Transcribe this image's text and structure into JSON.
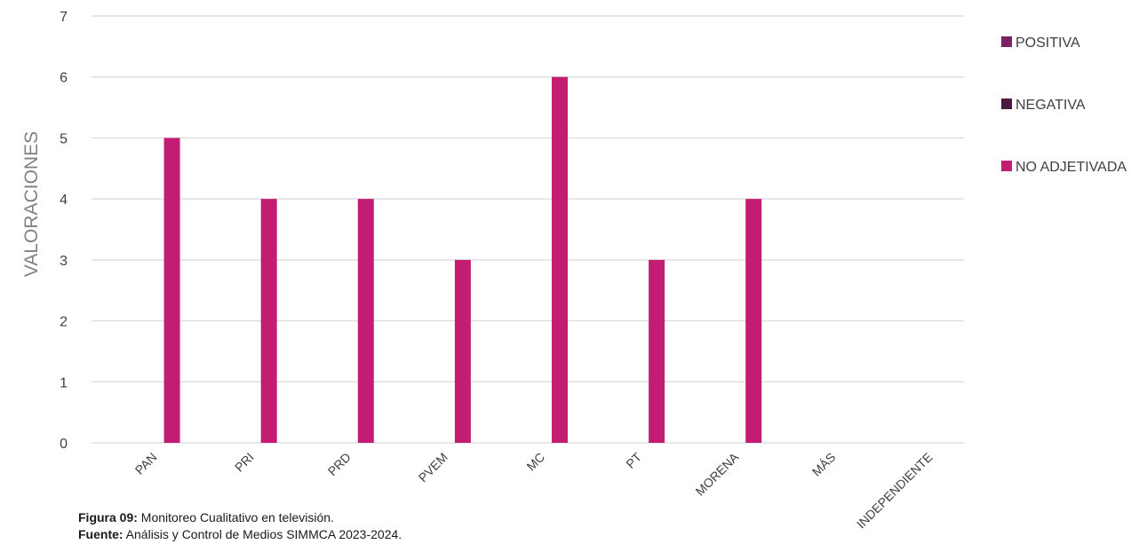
{
  "chart_data": {
    "type": "bar",
    "categories": [
      "PAN",
      "PRI",
      "PRD",
      "PVEM",
      "MC",
      "PT",
      "MORENA",
      "MÁS",
      "INDEPENDIENTE"
    ],
    "series": [
      {
        "name": "POSITIVA",
        "color": "#7a2466",
        "values": [
          0,
          0,
          0,
          0,
          0,
          0,
          0,
          0,
          0
        ]
      },
      {
        "name": "NEGATIVA",
        "color": "#4a1a3f",
        "values": [
          0,
          0,
          0,
          0,
          0,
          0,
          0,
          0,
          0
        ]
      },
      {
        "name": "NO ADJETIVADA",
        "color": "#c21d73",
        "values": [
          5,
          4,
          4,
          3,
          6,
          3,
          4,
          0,
          0
        ]
      }
    ],
    "title": "",
    "xlabel": "",
    "ylabel": "VALORACIONES",
    "ylim": [
      0,
      7
    ],
    "yticks": [
      0,
      1,
      2,
      3,
      4,
      5,
      6,
      7
    ],
    "grid": true,
    "legend_position": "right"
  },
  "caption": {
    "figure_label": "Figura 09:",
    "figure_text": " Monitoreo Cualitativo en televisión.",
    "source_label": "Fuente:",
    "source_text": " Análisis y Control de Medios SIMMCA 2023-2024."
  }
}
